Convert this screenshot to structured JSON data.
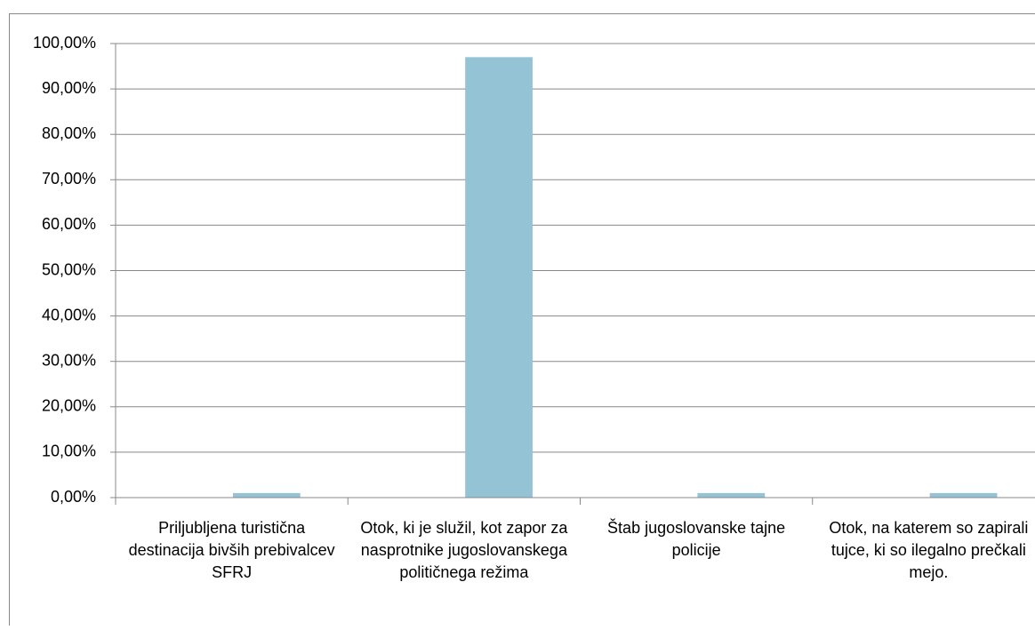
{
  "chart_data": {
    "type": "bar",
    "categories": [
      "Priljubljena turistična destinacija bivših prebivalcev SFRJ",
      "Otok, ki je služil, kot zapor za nasprotnike jugoslovanskega političnega režima",
      "Štab jugoslovanske tajne policije",
      "Otok, na katerem so zapirali tujce, ki so ilegalno prečkali mejo."
    ],
    "values": [
      1,
      97,
      1,
      1
    ],
    "color": "#93c3d4",
    "ylim": [
      0,
      100
    ],
    "yticks": [
      {
        "value": 0,
        "label": "0,00%"
      },
      {
        "value": 10,
        "label": "10,00%"
      },
      {
        "value": 20,
        "label": "20,00%"
      },
      {
        "value": 30,
        "label": "30,00%"
      },
      {
        "value": 40,
        "label": "40,00%"
      },
      {
        "value": 50,
        "label": "50,00%"
      },
      {
        "value": 60,
        "label": "60,00%"
      },
      {
        "value": 70,
        "label": "70,00%"
      },
      {
        "value": 80,
        "label": "80,00%"
      },
      {
        "value": 90,
        "label": "90,00%"
      },
      {
        "value": 100,
        "label": "100,00%"
      }
    ],
    "grid": true
  }
}
